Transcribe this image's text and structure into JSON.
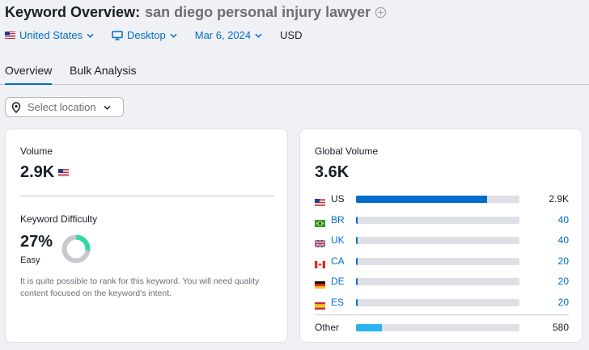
{
  "header": {
    "title_prefix": "Keyword Overview:",
    "keyword": "san diego personal injury lawyer"
  },
  "filters": {
    "country": "United States",
    "device": "Desktop",
    "date": "Mar 6, 2024",
    "currency": "USD"
  },
  "tabs": [
    {
      "label": "Overview",
      "active": true
    },
    {
      "label": "Bulk Analysis",
      "active": false
    }
  ],
  "location_select": {
    "placeholder": "Select location"
  },
  "volume_card": {
    "volume_label": "Volume",
    "volume_value": "2.9K",
    "kd_label": "Keyword Difficulty",
    "kd_value": "27%",
    "kd_percent": 27,
    "kd_level": "Easy",
    "kd_description": "It is quite possible to rank for this keyword. You will need quality content focused on the keyword's intent."
  },
  "global_card": {
    "label": "Global Volume",
    "value": "3.6K",
    "countries": [
      {
        "code": "US",
        "value": "2.9K",
        "share": 0.8,
        "link": false
      },
      {
        "code": "BR",
        "value": "40",
        "share": 0.011,
        "link": true
      },
      {
        "code": "UK",
        "value": "40",
        "share": 0.011,
        "link": true
      },
      {
        "code": "CA",
        "value": "20",
        "share": 0.0055,
        "link": true
      },
      {
        "code": "DE",
        "value": "20",
        "share": 0.0055,
        "link": true
      },
      {
        "code": "ES",
        "value": "20",
        "share": 0.0055,
        "link": true
      }
    ],
    "other": {
      "label": "Other",
      "value": "580",
      "share": 0.16
    }
  },
  "colors": {
    "accent": "#006dca",
    "kd_ring": "#2fd8a3",
    "other_bar": "#2bb3f0"
  }
}
